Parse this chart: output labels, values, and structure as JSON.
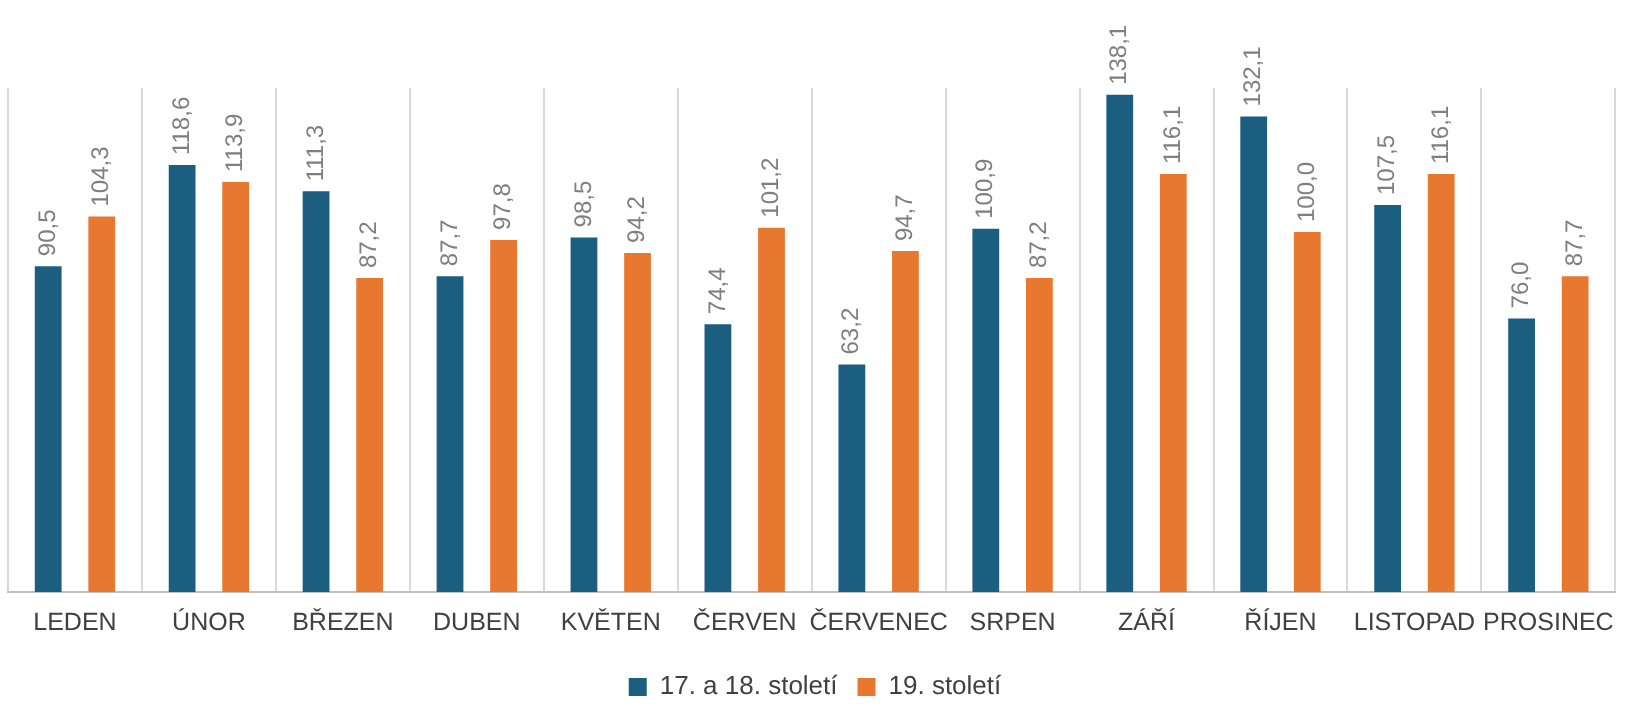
{
  "chart_data": {
    "type": "bar",
    "categories": [
      "LEDEN",
      "ÚNOR",
      "BŘEZEN",
      "DUBEN",
      "KVĚTEN",
      "ČERVEN",
      "ČERVENEC",
      "SRPEN",
      "ZÁŘÍ",
      "ŘÍJEN",
      "LISTOPAD",
      "PROSINEC"
    ],
    "series": [
      {
        "name": "17. a 18. století",
        "color": "#1b5e80",
        "values": [
          90.5,
          118.6,
          111.3,
          87.7,
          98.5,
          74.4,
          63.2,
          100.9,
          138.1,
          132.1,
          107.5,
          76.0
        ],
        "value_labels": [
          "90,5",
          "118,6",
          "111,3",
          "87,7",
          "98,5",
          "74,4",
          "63,2",
          "100,9",
          "138,1",
          "132,1",
          "107,5",
          "76,0"
        ]
      },
      {
        "name": "19. století",
        "color": "#e87830",
        "values": [
          104.3,
          113.9,
          87.2,
          97.8,
          94.2,
          101.2,
          94.7,
          87.2,
          116.1,
          100.0,
          116.1,
          87.7
        ],
        "value_labels": [
          "104,3",
          "113,9",
          "87,2",
          "97,8",
          "94,2",
          "101,2",
          "94,7",
          "87,2",
          "116,1",
          "100,0",
          "116,1",
          "87,7"
        ]
      }
    ],
    "grid": "x",
    "legend": "bottom"
  }
}
